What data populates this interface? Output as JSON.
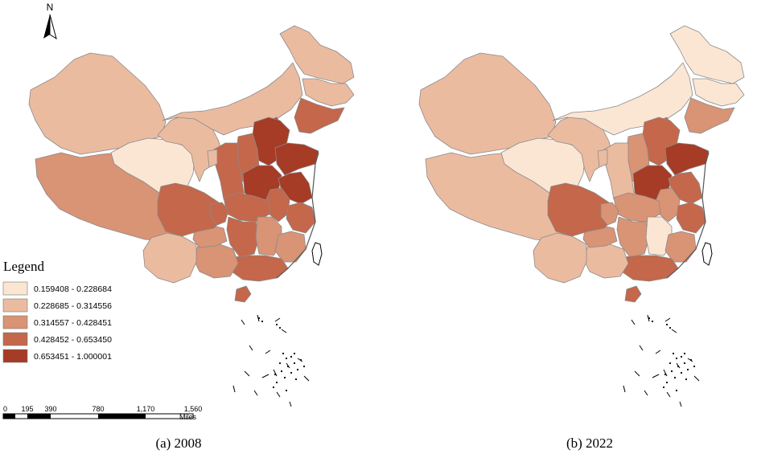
{
  "north_arrow": {
    "label": "N",
    "icon": "north-arrow-icon"
  },
  "legend": {
    "title": "Legend",
    "classes": [
      {
        "label": "0.159408 - 0.228684",
        "color": "#fbe6d4"
      },
      {
        "label": "0.228685 - 0.314556",
        "color": "#ebbba0"
      },
      {
        "label": "0.314557 - 0.428451",
        "color": "#d99375"
      },
      {
        "label": "0.428452 - 0.653450",
        "color": "#c4674b"
      },
      {
        "label": "0.653451 - 1.000001",
        "color": "#a63b26"
      }
    ]
  },
  "scale_bar": {
    "ticks": [
      "0",
      "195",
      "390",
      "780",
      "1,170",
      "1,560"
    ],
    "unit": "Miles"
  },
  "maps": [
    {
      "id": "2008",
      "caption": "(a) 2008"
    },
    {
      "id": "2022",
      "caption": "(b) 2022"
    }
  ],
  "chart_data": {
    "type": "choropleth",
    "class_breaks": [
      0.159408,
      0.228684,
      0.314556,
      0.428451,
      0.65345,
      1.000001
    ],
    "panels": [
      {
        "caption": "(a) 2008",
        "region_class": {
          "xinjiang": 1,
          "tibet": 2,
          "qinghai": 0,
          "gansu": 1,
          "inner_mongolia": 1,
          "heilongjiang": 1,
          "jilin": 1,
          "liaoning": 3,
          "beijing": 4,
          "tianjin": 4,
          "hebei": 4,
          "shanxi": 3,
          "shaanxi": 3,
          "ningxia": 1,
          "henan": 4,
          "shandong": 4,
          "jiangsu": 4,
          "anhui": 3,
          "hubei": 3,
          "hunan": 3,
          "jiangxi": 2,
          "zhejiang": 3,
          "fujian": 2,
          "guangdong": 3,
          "guangxi": 2,
          "hainan": 3,
          "yunnan": 1,
          "guizhou": 2,
          "sichuan": 3,
          "chongqing": 3
        }
      },
      {
        "caption": "(b) 2022",
        "region_class": {
          "xinjiang": 1,
          "tibet": 1,
          "qinghai": 0,
          "gansu": 1,
          "inner_mongolia": 0,
          "heilongjiang": 0,
          "jilin": 0,
          "liaoning": 2,
          "beijing": 3,
          "tianjin": 3,
          "hebei": 3,
          "shanxi": 2,
          "shaanxi": 1,
          "ningxia": 1,
          "henan": 4,
          "shandong": 4,
          "jiangsu": 3,
          "anhui": 2,
          "hubei": 2,
          "hunan": 2,
          "jiangxi": 0,
          "zhejiang": 3,
          "fujian": 2,
          "guangdong": 3,
          "guangxi": 1,
          "hainan": 3,
          "yunnan": 1,
          "guizhou": 2,
          "sichuan": 3,
          "chongqing": 2
        }
      }
    ]
  }
}
